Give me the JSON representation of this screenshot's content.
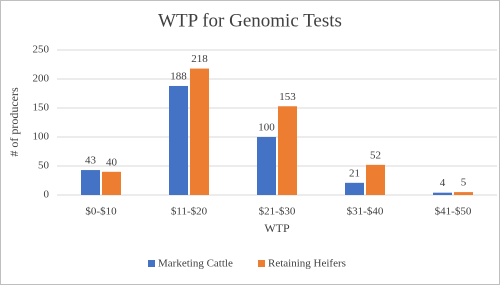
{
  "chart_data": {
    "type": "bar",
    "title": "WTP for Genomic Tests",
    "x_label": "WTP",
    "y_label": "# of producers",
    "categories": [
      "$0-$10",
      "$11-$20",
      "$21-$30",
      "$31-$40",
      "$41-$50"
    ],
    "series": [
      {
        "name": "Marketing Cattle",
        "color": "#4472c4",
        "values": [
          43,
          188,
          100,
          21,
          4
        ]
      },
      {
        "name": "Retaining Heifers",
        "color": "#ed7d31",
        "values": [
          40,
          218,
          153,
          52,
          5
        ]
      }
    ],
    "ylim": [
      0,
      250
    ],
    "yticks": [
      0,
      50,
      100,
      150,
      200,
      250
    ],
    "grid": true,
    "legend": "bottom"
  }
}
